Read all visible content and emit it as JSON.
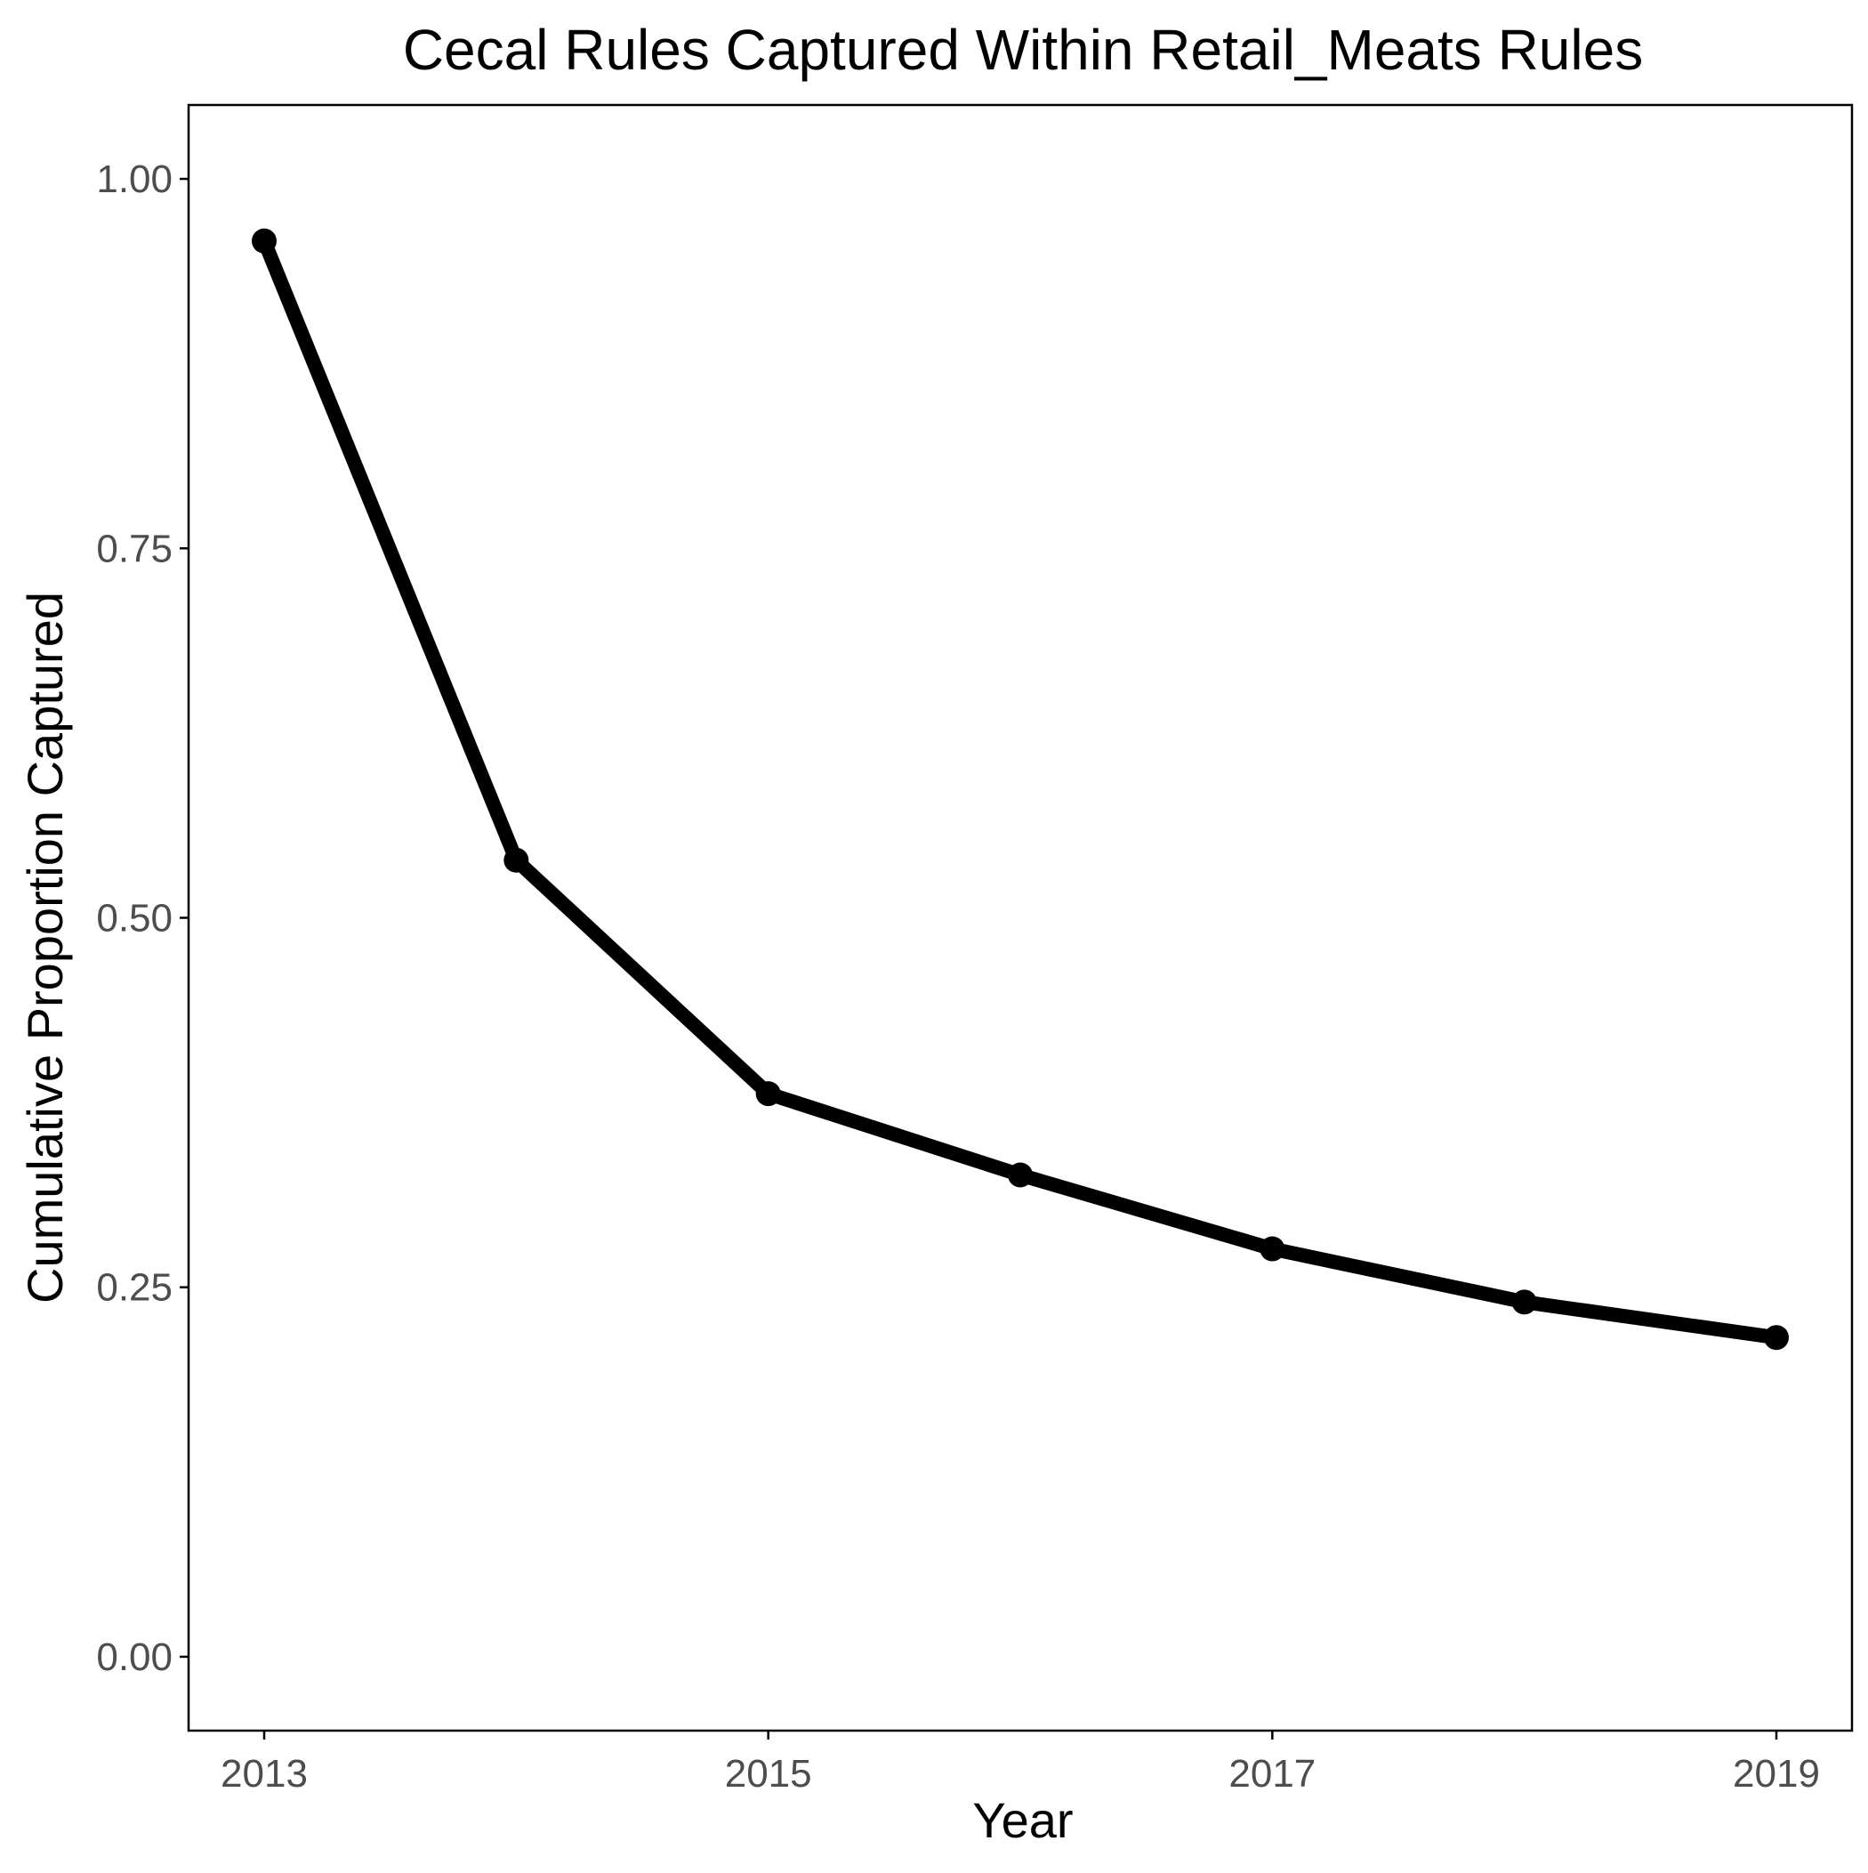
{
  "chart_data": {
    "type": "line",
    "title": "Cecal Rules Captured Within Retail_Meats Rules",
    "xlabel": "Year",
    "ylabel": "Cumulative Proportion Captured",
    "x": [
      2013,
      2014,
      2015,
      2016,
      2017,
      2018,
      2019
    ],
    "series": [
      {
        "values": [
          0.958,
          0.539,
          0.381,
          0.326,
          0.276,
          0.24,
          0.216
        ]
      }
    ],
    "xlim": [
      2012.7,
      2019.3
    ],
    "ylim": [
      -0.05,
      1.05
    ],
    "x_ticks": [
      2013,
      2015,
      2017,
      2019
    ],
    "x_tick_labels": [
      "2013",
      "2015",
      "2017",
      "2019"
    ],
    "y_ticks": [
      0,
      0.25,
      0.5,
      0.75,
      1
    ],
    "y_tick_labels": [
      "0.00",
      "0.25",
      "0.50",
      "0.75",
      "1.00"
    ],
    "grid": false,
    "colors": {
      "line": "#000000",
      "points": "#000000",
      "tick_text": "#4d4d4d",
      "border": "#000000"
    }
  }
}
